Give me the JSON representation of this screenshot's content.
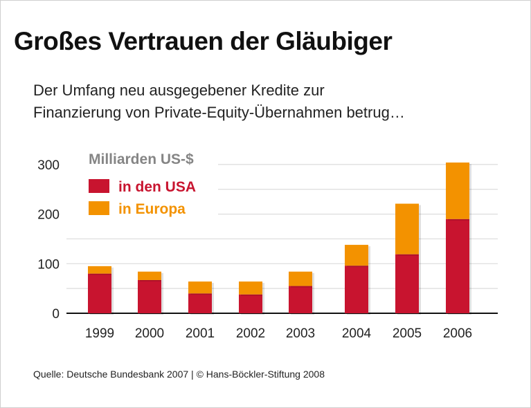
{
  "title": "Großes Vertrauen der Gläubiger",
  "subtitle_lines": [
    "Der Umfang neu ausgegebener Kredite zur",
    "Finanzierung von Private-Equity-Übernahmen betrug…"
  ],
  "source": "Quelle: Deutsche Bundesbank 2007 | © Hans-Böckler-Stiftung 2008",
  "chart_data": {
    "type": "bar",
    "stacked": true,
    "unit_label": "Milliarden US-$",
    "categories": [
      "1999",
      "2000",
      "2001",
      "2002",
      "2003",
      "2004",
      "2005",
      "2006"
    ],
    "series": [
      {
        "name": "in den USA",
        "color": "#c8142f",
        "values": [
          80,
          67,
          40,
          38,
          55,
          96,
          119,
          190
        ]
      },
      {
        "name": "in Europa",
        "color": "#f39200",
        "values": [
          15,
          17,
          24,
          26,
          29,
          42,
          102,
          114
        ]
      }
    ],
    "ylim": [
      0,
      300
    ],
    "yticks": [
      0,
      100,
      200,
      300
    ],
    "grid": true,
    "grid_step": 50,
    "legend_position": "top-left"
  }
}
